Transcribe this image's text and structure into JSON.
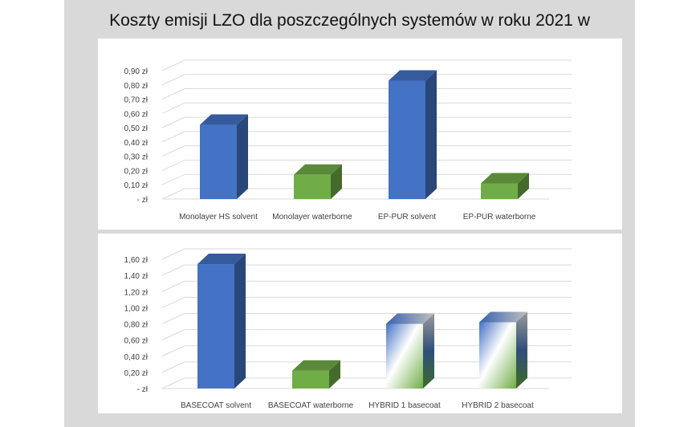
{
  "title": "Koszty emisji LZO dla poszczególnych systemów w roku 2021 w",
  "chart_data": [
    {
      "type": "bar",
      "categories": [
        "Monolayer HS solvent",
        "Monolayer waterborne",
        "EP-PUR solvent",
        "EP-PUR waterborne"
      ],
      "values": [
        0.52,
        0.17,
        0.83,
        0.11
      ],
      "colors": [
        "#4472c4",
        "#70ad47",
        "#4472c4",
        "#70ad47"
      ],
      "yticks": [
        "-  zł",
        "0,10 zł",
        "0,20 zł",
        "0,30 zł",
        "0,40 zł",
        "0,50 zł",
        "0,60 zł",
        "0,70 zł",
        "0,80 zł",
        "0,90 zł"
      ],
      "ylim": [
        0,
        0.9
      ],
      "grid": true,
      "style": "3d"
    },
    {
      "type": "bar",
      "categories": [
        "BASECOAT solvent",
        "BASECOAT waterborne",
        "HYBRID 1 basecoat",
        "HYBRID 2 basecoat"
      ],
      "values": [
        1.54,
        0.22,
        0.8,
        0.82
      ],
      "colors": [
        "#4472c4",
        "#70ad47",
        "gradient",
        "gradient"
      ],
      "yticks": [
        "-  zł",
        "0,20 zł",
        "0,40 zł",
        "0,60 zł",
        "0,80 zł",
        "1,00 zł",
        "1,20 zł",
        "1,40 zł",
        "1,60 zł"
      ],
      "ylim": [
        0,
        1.6
      ],
      "grid": true,
      "style": "3d"
    }
  ]
}
